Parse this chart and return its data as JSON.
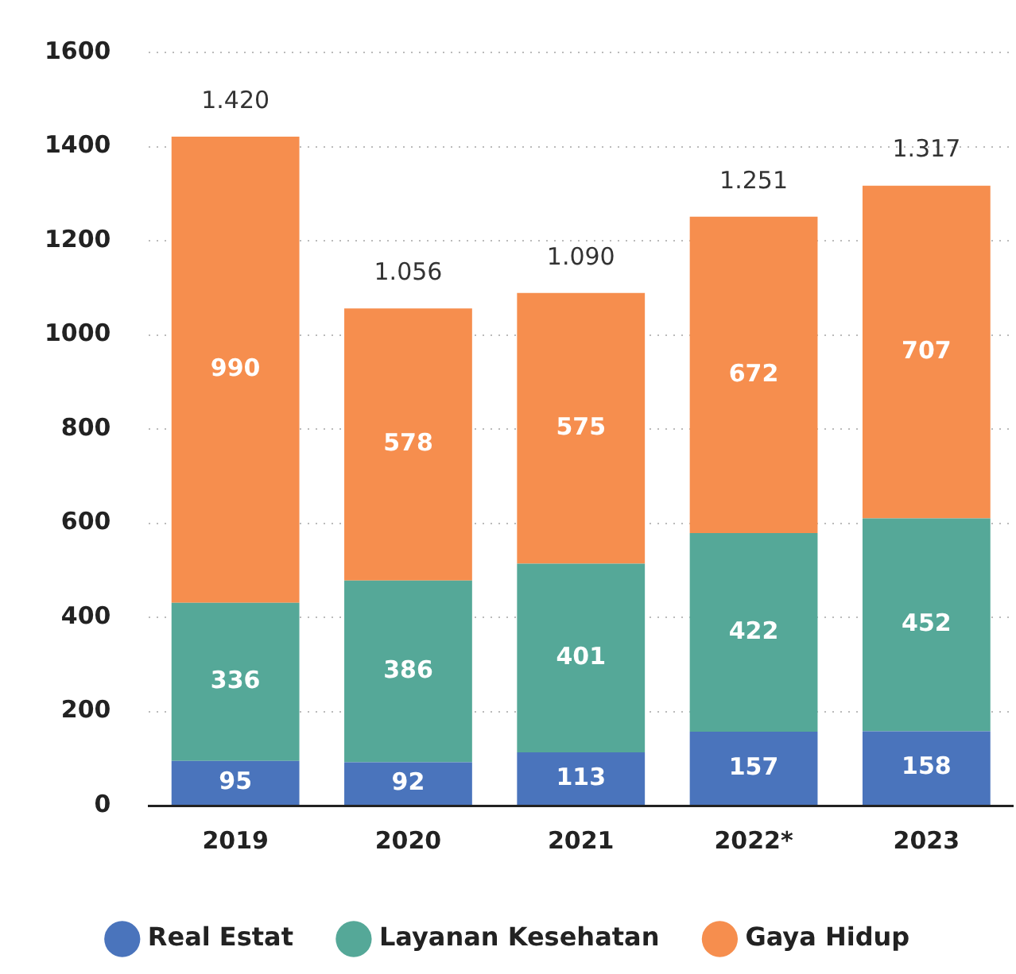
{
  "chart_data": {
    "type": "bar",
    "stacked": true,
    "categories": [
      "2019",
      "2020",
      "2021",
      "2022*",
      "2023"
    ],
    "series": [
      {
        "name": "Real Estat",
        "color": "#4a74bc",
        "values": [
          95,
          92,
          113,
          157,
          158
        ]
      },
      {
        "name": "Layanan Kesehatan",
        "color": "#55a898",
        "values": [
          336,
          386,
          401,
          422,
          452
        ]
      },
      {
        "name": "Gaya Hidup",
        "color": "#f68e4e",
        "values": [
          990,
          578,
          575,
          672,
          707
        ]
      }
    ],
    "totals": [
      "1.420",
      "1.056",
      "1.090",
      "1.251",
      "1.317"
    ],
    "data_labels": true,
    "ylim": [
      0,
      1600
    ],
    "yticks": [
      0,
      200,
      400,
      600,
      800,
      1000,
      1200,
      1400,
      1600
    ],
    "grid": "y",
    "legend": "bottom"
  }
}
